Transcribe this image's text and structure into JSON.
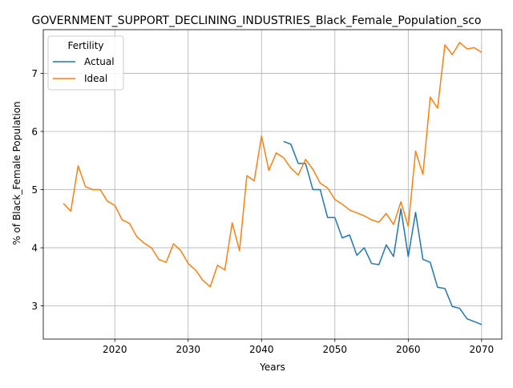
{
  "chart_data": {
    "type": "line",
    "title": "GOVERNMENT_SUPPORT_DECLINING_INDUSTRIES_Black_Female_Population_sco",
    "xlabel": "Years",
    "ylabel": "% of Black_Female Population",
    "xlim": [
      2010.25,
      2072.75
    ],
    "ylim": [
      2.43,
      7.75
    ],
    "xticks": [
      2020,
      2030,
      2040,
      2050,
      2060,
      2070
    ],
    "yticks": [
      3,
      4,
      5,
      6,
      7
    ],
    "grid": true,
    "legend": {
      "title": "Fertility",
      "placement": "top-left"
    },
    "series": [
      {
        "name": "Actual",
        "color": "#1f77b4",
        "x": [
          2043,
          2044,
          2045,
          2046,
          2047,
          2048,
          2049,
          2050,
          2051,
          2052,
          2053,
          2054,
          2055,
          2056,
          2057,
          2058,
          2059,
          2060,
          2061,
          2062,
          2063,
          2064,
          2065,
          2066,
          2067,
          2068,
          2069,
          2070
        ],
        "y": [
          5.83,
          5.78,
          5.45,
          5.45,
          5.0,
          5.0,
          4.52,
          4.52,
          4.17,
          4.22,
          3.87,
          4.0,
          3.73,
          3.71,
          4.05,
          3.85,
          4.67,
          3.85,
          4.61,
          3.8,
          3.75,
          3.32,
          3.3,
          2.99,
          2.96,
          2.78,
          2.73,
          2.68
        ]
      },
      {
        "name": "Ideal",
        "color": "#ff7f0e",
        "x": [
          2013,
          2014,
          2015,
          2016,
          2017,
          2018,
          2019,
          2020,
          2021,
          2022,
          2023,
          2024,
          2025,
          2026,
          2027,
          2028,
          2029,
          2030,
          2031,
          2032,
          2033,
          2034,
          2035,
          2036,
          2037,
          2038,
          2039,
          2040,
          2041,
          2042,
          2043,
          2044,
          2045,
          2046,
          2047,
          2048,
          2049,
          2050,
          2051,
          2052,
          2053,
          2054,
          2055,
          2056,
          2057,
          2058,
          2059,
          2060,
          2061,
          2062,
          2063,
          2064,
          2065,
          2066,
          2067,
          2068,
          2069,
          2070
        ],
        "y": [
          4.76,
          4.63,
          5.41,
          5.05,
          5.0,
          5.0,
          4.8,
          4.73,
          4.48,
          4.42,
          4.19,
          4.08,
          4.0,
          3.8,
          3.75,
          4.07,
          3.95,
          3.73,
          3.62,
          3.44,
          3.33,
          3.7,
          3.62,
          4.43,
          3.95,
          5.24,
          5.15,
          5.92,
          5.33,
          5.63,
          5.55,
          5.37,
          5.25,
          5.52,
          5.35,
          5.11,
          5.03,
          4.83,
          4.75,
          4.65,
          4.6,
          4.55,
          4.48,
          4.44,
          4.59,
          4.4,
          4.79,
          4.37,
          5.66,
          5.26,
          6.59,
          6.4,
          7.49,
          7.32,
          7.53,
          7.42,
          7.44,
          7.36
        ]
      }
    ]
  }
}
